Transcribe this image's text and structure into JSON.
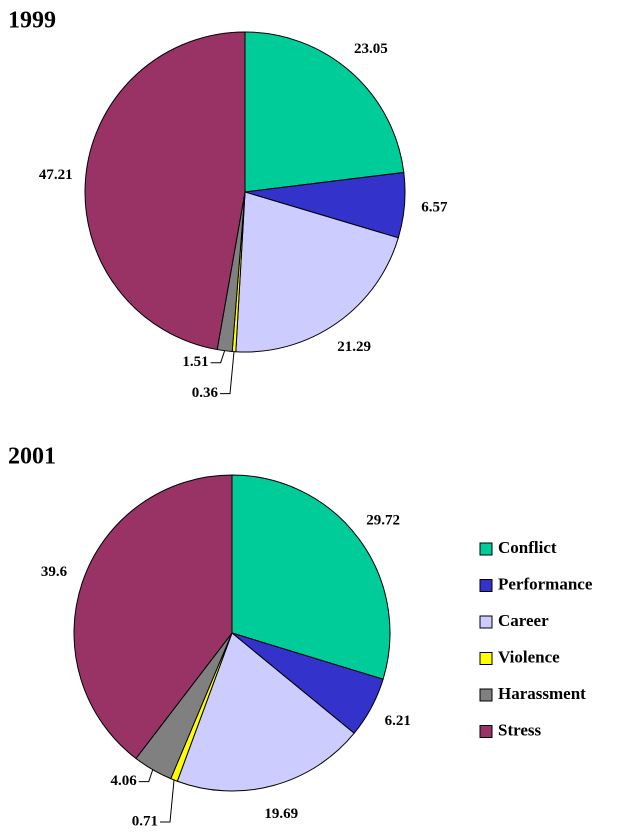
{
  "categories": [
    "Conflict",
    "Performance",
    "Career",
    "Violence",
    "Harassment",
    "Stress"
  ],
  "colors": [
    "#00cc99",
    "#3333cc",
    "#ccccff",
    "#ffff00",
    "#808080",
    "#993366"
  ],
  "chart_data": [
    {
      "type": "pie",
      "title": "1999",
      "values": [
        23.05,
        6.57,
        21.29,
        0.36,
        1.51,
        47.21
      ]
    },
    {
      "type": "pie",
      "title": "2001",
      "values": [
        29.72,
        6.21,
        19.69,
        0.71,
        4.06,
        39.6
      ]
    }
  ]
}
